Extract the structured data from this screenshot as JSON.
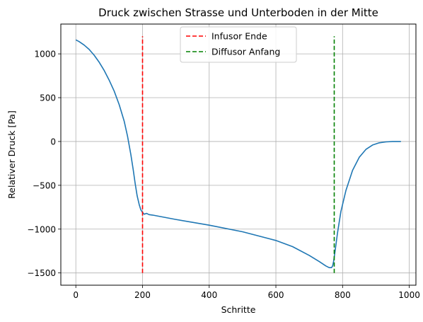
{
  "chart_data": {
    "type": "line",
    "title": "Druck zwischen Strasse und Unterboden in der Mitte",
    "xlabel": "Schritte",
    "ylabel": "Relativer Druck [Pa]",
    "xlim": [
      -45,
      1020
    ],
    "ylim": [
      -1640,
      1340
    ],
    "xticks": [
      0,
      200,
      400,
      600,
      800,
      1000
    ],
    "yticks": [
      -1500,
      -1000,
      -500,
      0,
      500,
      1000
    ],
    "xtick_labels": [
      "0",
      "200",
      "400",
      "600",
      "800",
      "1000"
    ],
    "ytick_labels": [
      "−1500",
      "−1000",
      "−500",
      "0",
      "500",
      "1000"
    ],
    "grid": true,
    "legend_position": "top-center",
    "series": [
      {
        "color": "#1f77b4",
        "style": "solid",
        "x": [
          0,
          10,
          25,
          40,
          55,
          70,
          85,
          100,
          115,
          130,
          145,
          155,
          165,
          172,
          178,
          184,
          190,
          195,
          200,
          205,
          212,
          220,
          230,
          300,
          400,
          500,
          600,
          650,
          700,
          730,
          750,
          760,
          767,
          770,
          773,
          778,
          785,
          795,
          810,
          830,
          850,
          870,
          890,
          910,
          930,
          950,
          965,
          975
        ],
        "y": [
          1160,
          1140,
          1100,
          1050,
          985,
          905,
          810,
          700,
          575,
          420,
          230,
          60,
          -150,
          -320,
          -480,
          -620,
          -720,
          -780,
          -810,
          -830,
          -820,
          -835,
          -840,
          -890,
          -955,
          -1030,
          -1130,
          -1200,
          -1300,
          -1370,
          -1420,
          -1440,
          -1440,
          -1420,
          -1370,
          -1240,
          -1040,
          -800,
          -560,
          -330,
          -180,
          -90,
          -40,
          -15,
          -5,
          0,
          0,
          0
        ]
      },
      {
        "name": "Infusor Ende",
        "color": "#ff0000",
        "style": "dashed",
        "x": [
          200,
          200
        ],
        "y": [
          -1500,
          1200
        ]
      },
      {
        "name": "Diffusor Anfang",
        "color": "#008000",
        "style": "dashed",
        "x": [
          775,
          775
        ],
        "y": [
          -1500,
          1200
        ]
      }
    ]
  }
}
